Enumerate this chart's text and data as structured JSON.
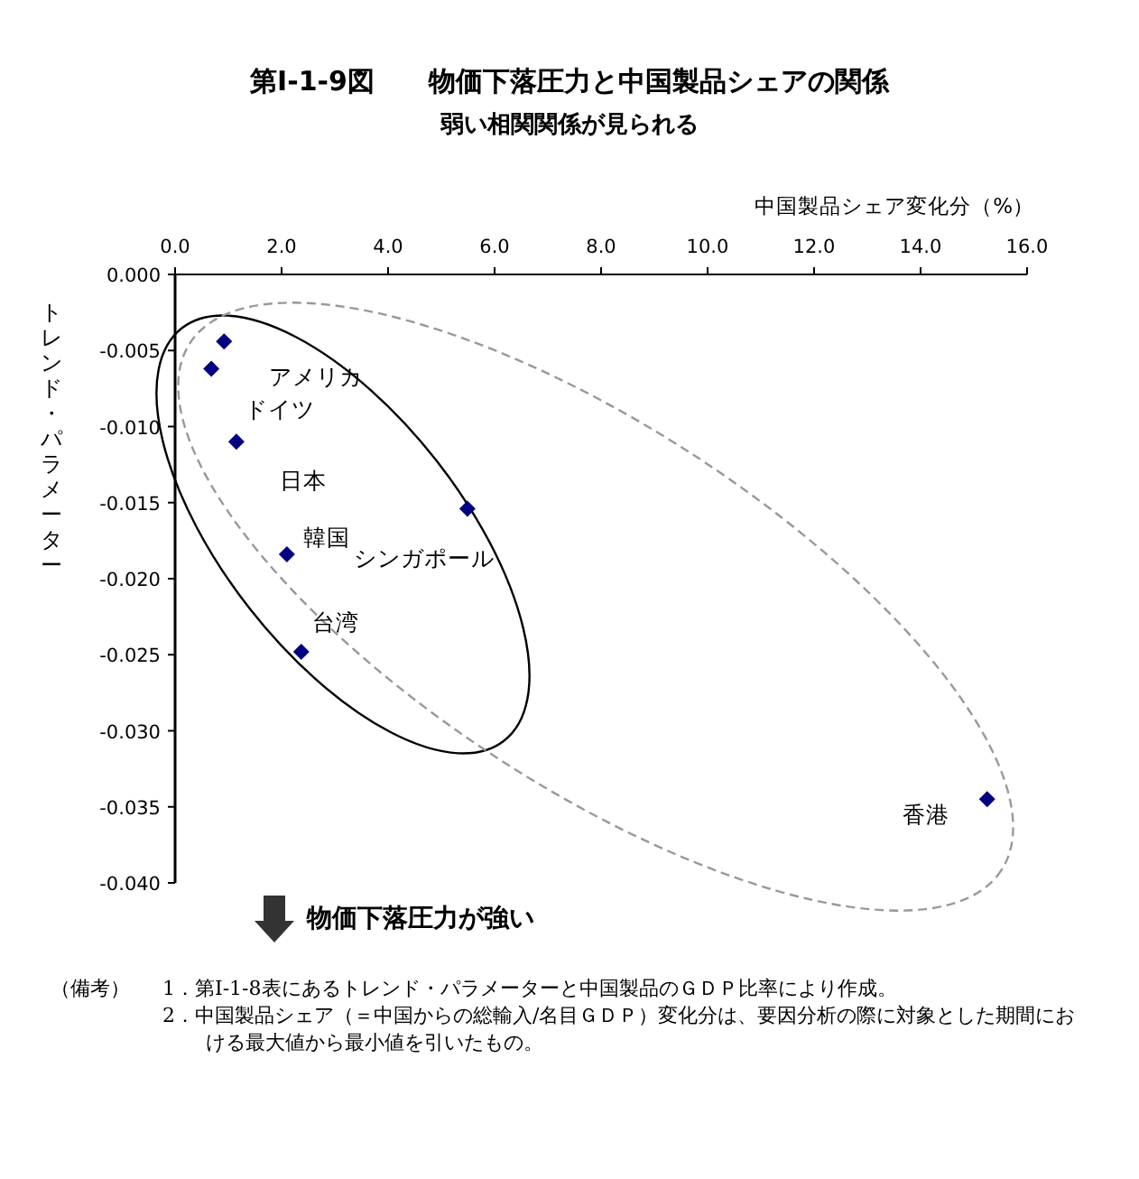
{
  "chart_data": {
    "type": "scatter",
    "title": "第Ⅰ-1-9図　　物価下落圧力と中国製品シェアの関係",
    "subtitle": "弱い相関関係が見られる",
    "xlabel": "中国製品シェア変化分（%）",
    "ylabel": "トレンド・パラメーター",
    "x": [
      0.92,
      0.68,
      1.15,
      5.49,
      2.1,
      2.37,
      15.25
    ],
    "series": [
      {
        "color": "#000080",
        "values": [
          -0.0044,
          -0.0062,
          -0.011,
          -0.0154,
          -0.0184,
          -0.0248,
          -0.0345
        ]
      }
    ],
    "marker": "diamond",
    "xlim": [
      0,
      16
    ],
    "xticks": [
      {
        "value": 0,
        "label": "0.0"
      },
      {
        "value": 2,
        "label": "2.0"
      },
      {
        "value": 4,
        "label": "4.0"
      },
      {
        "value": 6,
        "label": "6.0"
      },
      {
        "value": 8,
        "label": "8.0"
      },
      {
        "value": 10,
        "label": "10.0"
      },
      {
        "value": 12,
        "label": "12.0"
      },
      {
        "value": 14,
        "label": "14.0"
      },
      {
        "value": 16,
        "label": "16.0"
      }
    ],
    "ylim": [
      -0.04,
      0
    ],
    "yticks": [
      {
        "value": 0,
        "label": "0.000"
      },
      {
        "value": -0.005,
        "label": "-0.005"
      },
      {
        "value": -0.01,
        "label": "-0.010"
      },
      {
        "value": -0.015,
        "label": "-0.015"
      },
      {
        "value": -0.02,
        "label": "-0.020"
      },
      {
        "value": -0.025,
        "label": "-0.025"
      },
      {
        "value": -0.03,
        "label": "-0.030"
      },
      {
        "value": -0.035,
        "label": "-0.035"
      },
      {
        "value": -0.04,
        "label": "-0.040"
      }
    ],
    "grid": false,
    "annotations": [
      {
        "text": "アメリカ",
        "x": 0.92,
        "y": -0.0044
      },
      {
        "text": "ドイツ",
        "x": 0.68,
        "y": -0.0062
      },
      {
        "text": "日本",
        "x": 1.15,
        "y": -0.011
      },
      {
        "text": "シンガポール",
        "x": 5.49,
        "y": -0.0154
      },
      {
        "text": "韓国",
        "x": 2.1,
        "y": -0.0184
      },
      {
        "text": "台湾",
        "x": 2.37,
        "y": -0.0248
      },
      {
        "text": "香港",
        "x": 15.25,
        "y": -0.0345
      },
      "物価下落圧力が強い",
      "（備考）",
      "1．第Ⅰ-1-8表にあるトレンド・パラメーターと中国製品のＧＤＰ比率により作成。",
      "2．中国製品シェア（＝中国からの総輸入/名目ＧＤＰ）変化分は、要因分析の際に対象とした期間における最大値から最小値を引いたもの。"
    ]
  }
}
